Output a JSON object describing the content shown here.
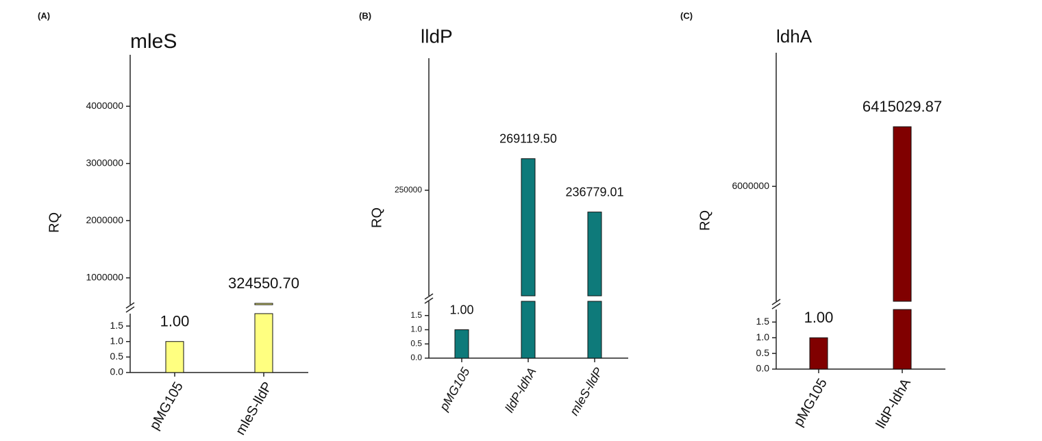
{
  "chart_data": [
    {
      "type": "bar",
      "panel_label": "(A)",
      "title": "mleS",
      "ylabel": "RQ",
      "categories": [
        "pMG105",
        "mleS-lldP"
      ],
      "values": [
        1,
        324550.7
      ],
      "value_labels": [
        "1.00",
        "324550.70"
      ],
      "color": "#ffff80",
      "ylim": [
        0,
        1.9
      ],
      "yticks": [
        {
          "value": 0,
          "label": "0.0"
        },
        0.5,
        {
          "value": 1,
          "label": "1.0"
        },
        1.5
      ],
      "ylim_upper": [
        530000,
        4900000
      ],
      "yticks_upper": [
        1000000,
        2000000,
        3000000,
        4000000
      ]
    },
    {
      "type": "bar",
      "panel_label": "(B)",
      "title": "lldP",
      "ylabel": "RQ",
      "categories": [
        "pMG105",
        "lldP-ldhA",
        "mleS-lldP"
      ],
      "values": [
        1,
        269119.5,
        236779.01
      ],
      "value_labels": [
        "1.00",
        "269119.50",
        "236779.01"
      ],
      "color": "#0e7a7a",
      "category_italic": true,
      "ylim": [
        0,
        2
      ],
      "yticks": [
        {
          "value": 0,
          "label": "0.0"
        },
        0.5,
        {
          "value": 1,
          "label": "1.0"
        },
        1.5
      ],
      "ylim_upper": [
        186000,
        330000
      ],
      "yticks_upper": [
        250000
      ]
    },
    {
      "type": "bar",
      "panel_label": "(C)",
      "title": "ldhA",
      "ylabel": "RQ",
      "categories": [
        "pMG105",
        "lldP-ldhA"
      ],
      "values": [
        1,
        6415029.87
      ],
      "value_labels": [
        "1.00",
        "6415029.87"
      ],
      "color": "#800000",
      "ylim": [
        0,
        1.9
      ],
      "yticks": [
        {
          "value": 0,
          "label": "0.0"
        },
        0.5,
        {
          "value": 1,
          "label": "1.0"
        },
        1.5
      ],
      "ylim_upper": [
        5200000,
        6930000
      ],
      "yticks_upper": [
        6000000
      ]
    }
  ]
}
